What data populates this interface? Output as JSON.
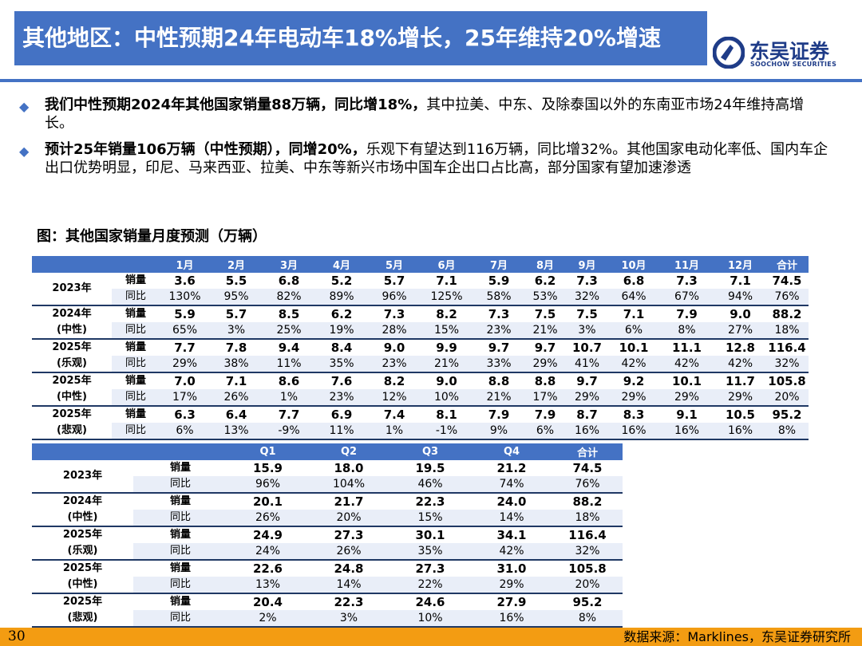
{
  "header": {
    "title": "其他地区：中性预期24年电动车18%增长，25年维持20%增速"
  },
  "logo": {
    "name_cn": "东吴证券",
    "name_en": "SOOCHOW SECURITIES",
    "color": "#1f3c88"
  },
  "bullets": [
    {
      "bold": "我们中性预期2024年其他国家销量88万辆，同比增18%，",
      "text": "其中拉美、中东、及除泰国以外的东南亚市场24年维持高增长。"
    },
    {
      "bold": "预计25年销量106万辆（中性预期），同增20%，",
      "text": "乐观下有望达到116万辆，同比增32%。其他国家电动化率低、国内车企出口优势明显，印尼、马来西亚、拉美、中东等新兴市场中国车企出口占比高，部分国家有望加速渗透"
    }
  ],
  "figure": {
    "caption": "图：其他国家销量月度预测（万辆）"
  },
  "monthly_table": {
    "headers": [
      "",
      "",
      "1月",
      "2月",
      "3月",
      "4月",
      "5月",
      "6月",
      "7月",
      "8月",
      "9月",
      "10月",
      "11月",
      "12月",
      "合计"
    ],
    "groups": [
      {
        "year_lines": [
          "2023年"
        ],
        "sales_label": "销量",
        "yoy_label": "同比",
        "sales": [
          "3.6",
          "5.5",
          "6.8",
          "5.2",
          "5.7",
          "7.1",
          "5.9",
          "6.2",
          "7.3",
          "6.8",
          "7.3",
          "7.1",
          "74.5"
        ],
        "yoy": [
          "130%",
          "95%",
          "82%",
          "89%",
          "96%",
          "125%",
          "58%",
          "53%",
          "32%",
          "64%",
          "67%",
          "94%",
          "76%"
        ]
      },
      {
        "year_lines": [
          "2024年",
          "(中性)"
        ],
        "sales_label": "销量",
        "yoy_label": "同比",
        "sales": [
          "5.9",
          "5.7",
          "8.5",
          "6.2",
          "7.3",
          "8.2",
          "7.3",
          "7.5",
          "7.5",
          "7.1",
          "7.9",
          "9.0",
          "88.2"
        ],
        "yoy": [
          "65%",
          "3%",
          "25%",
          "19%",
          "28%",
          "15%",
          "23%",
          "21%",
          "3%",
          "6%",
          "8%",
          "27%",
          "18%"
        ]
      },
      {
        "year_lines": [
          "2025年",
          "(乐观)"
        ],
        "sales_label": "销量",
        "yoy_label": "同比",
        "sales": [
          "7.7",
          "7.8",
          "9.4",
          "8.4",
          "9.0",
          "9.9",
          "9.7",
          "9.7",
          "10.7",
          "10.1",
          "11.1",
          "12.8",
          "116.4"
        ],
        "yoy": [
          "29%",
          "38%",
          "11%",
          "35%",
          "23%",
          "21%",
          "33%",
          "29%",
          "41%",
          "42%",
          "42%",
          "42%",
          "32%"
        ]
      },
      {
        "year_lines": [
          "2025年",
          "(中性)"
        ],
        "sales_label": "销量",
        "yoy_label": "同比",
        "sales": [
          "7.0",
          "7.1",
          "8.6",
          "7.6",
          "8.2",
          "9.0",
          "8.8",
          "8.8",
          "9.7",
          "9.2",
          "10.1",
          "11.7",
          "105.8"
        ],
        "yoy": [
          "17%",
          "26%",
          "1%",
          "23%",
          "12%",
          "10%",
          "21%",
          "17%",
          "29%",
          "29%",
          "29%",
          "29%",
          "20%"
        ]
      },
      {
        "year_lines": [
          "2025年",
          "(悲观)"
        ],
        "sales_label": "销量",
        "yoy_label": "同比",
        "sales": [
          "6.3",
          "6.4",
          "7.7",
          "6.9",
          "7.4",
          "8.1",
          "7.9",
          "7.9",
          "8.7",
          "8.3",
          "9.1",
          "10.5",
          "95.2"
        ],
        "yoy": [
          "6%",
          "13%",
          "-9%",
          "11%",
          "1%",
          "-1%",
          "9%",
          "6%",
          "16%",
          "16%",
          "16%",
          "16%",
          "8%"
        ]
      }
    ]
  },
  "quarterly_table": {
    "headers": [
      "",
      "",
      "Q1",
      "Q2",
      "Q3",
      "Q4",
      "合计"
    ],
    "groups": [
      {
        "year_lines": [
          "2023年"
        ],
        "sales_label": "销量",
        "yoy_label": "同比",
        "sales": [
          "15.9",
          "18.0",
          "19.5",
          "21.2",
          "74.5"
        ],
        "yoy": [
          "96%",
          "104%",
          "46%",
          "74%",
          "76%"
        ]
      },
      {
        "year_lines": [
          "2024年",
          "(中性)"
        ],
        "sales_label": "销量",
        "yoy_label": "同比",
        "sales": [
          "20.1",
          "21.7",
          "22.3",
          "24.0",
          "88.2"
        ],
        "yoy": [
          "26%",
          "20%",
          "15%",
          "14%",
          "18%"
        ]
      },
      {
        "year_lines": [
          "2025年",
          "(乐观)"
        ],
        "sales_label": "销量",
        "yoy_label": "同比",
        "sales": [
          "24.9",
          "27.3",
          "30.1",
          "34.1",
          "116.4"
        ],
        "yoy": [
          "24%",
          "26%",
          "35%",
          "42%",
          "32%"
        ]
      },
      {
        "year_lines": [
          "2025年",
          "(中性)"
        ],
        "sales_label": "销量",
        "yoy_label": "同比",
        "sales": [
          "22.6",
          "24.8",
          "27.3",
          "31.0",
          "105.8"
        ],
        "yoy": [
          "13%",
          "14%",
          "22%",
          "29%",
          "20%"
        ]
      },
      {
        "year_lines": [
          "2025年",
          "(悲观)"
        ],
        "sales_label": "销量",
        "yoy_label": "同比",
        "sales": [
          "20.4",
          "22.3",
          "24.6",
          "27.9",
          "95.2"
        ],
        "yoy": [
          "2%",
          "3%",
          "10%",
          "16%",
          "8%"
        ]
      }
    ]
  },
  "footer": {
    "page_number": "30",
    "source": "数据来源：Marklines，东吴证券研究所"
  },
  "colors": {
    "title_bg": "#4472c4",
    "header_bg": "#4472c4",
    "row_tint": "#e9eef8",
    "footer_bg": "#f39c12"
  }
}
